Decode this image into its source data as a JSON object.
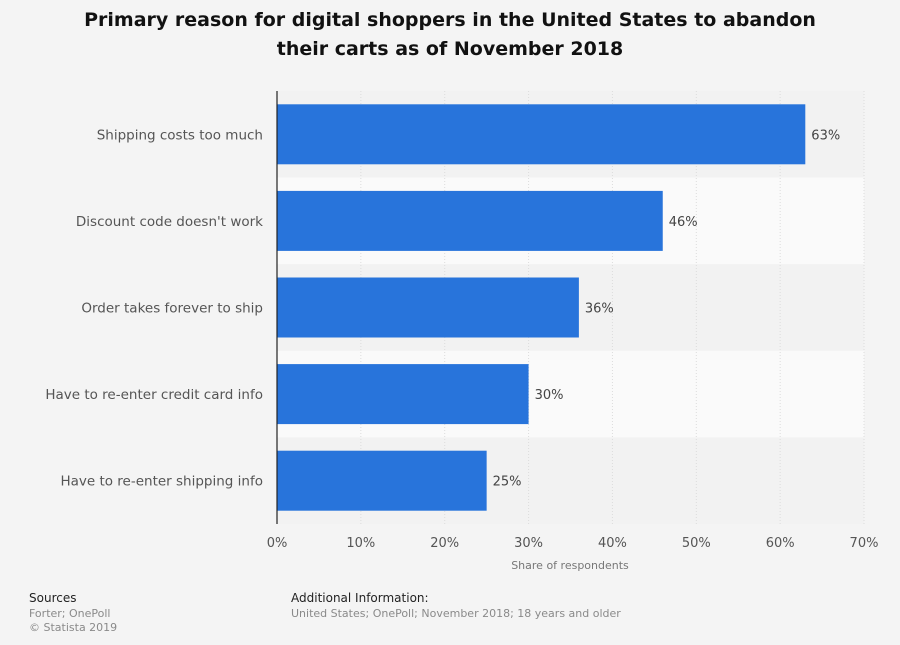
{
  "title_lines": [
    "Primary reason for digital shoppers in the United States to abandon",
    "their carts as of November 2018"
  ],
  "chart_data": {
    "type": "bar",
    "orientation": "horizontal",
    "categories": [
      "Shipping costs too much",
      "Discount code doesn't work",
      "Order takes forever to ship",
      "Have to re-enter credit card info",
      "Have to re-enter shipping info"
    ],
    "values": [
      63,
      46,
      36,
      30,
      25
    ],
    "value_labels": [
      "63%",
      "46%",
      "36%",
      "30%",
      "25%"
    ],
    "xlabel": "Share of respondents",
    "ylabel": "",
    "xlim": [
      0,
      70
    ],
    "x_ticks": [
      0,
      10,
      20,
      30,
      40,
      50,
      60,
      70
    ],
    "x_tick_labels": [
      "0%",
      "10%",
      "20%",
      "30%",
      "40%",
      "50%",
      "60%",
      "70%"
    ],
    "bar_color": "#2874db",
    "grid": true,
    "row_band_colors": [
      "#f2f2f2",
      "#fafafa"
    ]
  },
  "footer": {
    "sources_heading": "Sources",
    "sources_lines": [
      "Forter; OnePoll",
      "© Statista 2019"
    ],
    "additional_heading": "Additional Information:",
    "additional_text": "United States; OnePoll; November 2018; 18 years and older"
  }
}
